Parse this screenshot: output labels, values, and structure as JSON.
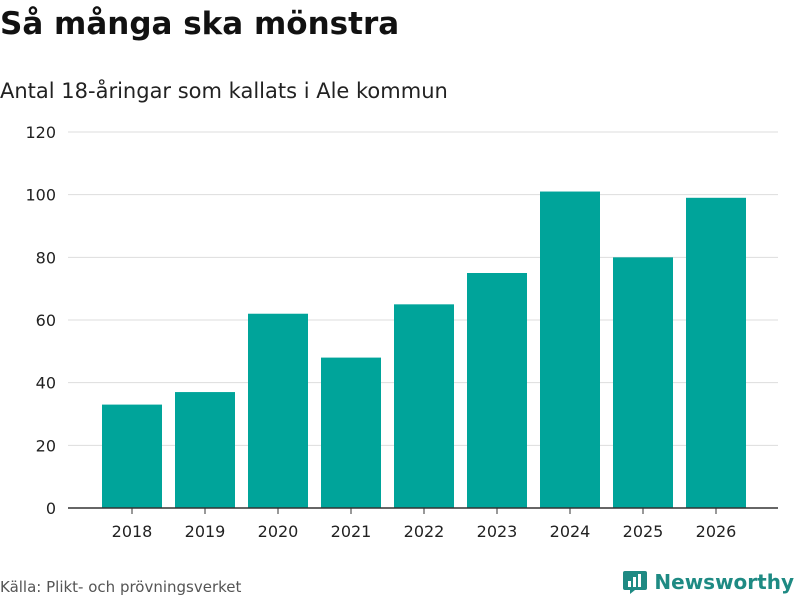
{
  "header": {
    "title": "Så många ska mönstra",
    "subtitle": "Antal 18-åringar som kallats i Ale kommun"
  },
  "footer": {
    "source": "Källa: Plikt- och prövningsverket",
    "brand": "Newsworthy",
    "brand_icon": "bar-chart-logo-icon"
  },
  "colors": {
    "bar": "#00A49A",
    "brand": "#1E8A83",
    "grid": "#DDDDDD",
    "axis": "#333333"
  },
  "chart_data": {
    "type": "bar",
    "title": "Så många ska mönstra",
    "subtitle": "Antal 18-åringar som kallats i Ale kommun",
    "categories": [
      "2018",
      "2019",
      "2020",
      "2021",
      "2022",
      "2023",
      "2024",
      "2025",
      "2026"
    ],
    "values": [
      33,
      37,
      62,
      48,
      65,
      75,
      101,
      80,
      99
    ],
    "xlabel": "",
    "ylabel": "",
    "ylim": [
      0,
      120
    ],
    "yticks": [
      0,
      20,
      40,
      60,
      80,
      100,
      120
    ],
    "grid": true,
    "legend": "none"
  }
}
